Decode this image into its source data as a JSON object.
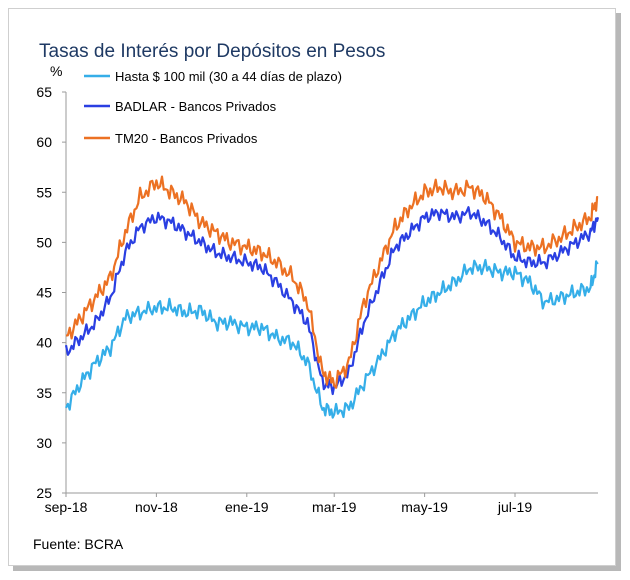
{
  "page": {
    "title": "Tasas de Interés por Depósitos en Pesos",
    "source": "Fuente: BCRA"
  },
  "chart_data": {
    "type": "line",
    "title": "Tasas de Interés por Depósitos en Pesos",
    "ylabel": "%",
    "xlabel": "",
    "ylim": [
      25,
      65
    ],
    "yticks": [
      25,
      30,
      35,
      40,
      45,
      50,
      55,
      60,
      65
    ],
    "xticks": [
      "sep-18",
      "nov-18",
      "ene-19",
      "mar-19",
      "may-19",
      "jul-19"
    ],
    "x_domain": [
      "2018-09-01",
      "2019-08-26"
    ],
    "grid": false,
    "legend_position": "top-left",
    "x": [
      "2018-09-01",
      "2018-09-11",
      "2018-09-21",
      "2018-10-01",
      "2018-10-11",
      "2018-10-21",
      "2018-11-01",
      "2018-11-11",
      "2018-11-21",
      "2018-12-01",
      "2018-12-11",
      "2018-12-21",
      "2019-01-01",
      "2019-01-11",
      "2019-01-21",
      "2019-02-01",
      "2019-02-11",
      "2019-02-21",
      "2019-03-01",
      "2019-03-11",
      "2019-03-21",
      "2019-04-01",
      "2019-04-11",
      "2019-04-21",
      "2019-05-01",
      "2019-05-11",
      "2019-05-21",
      "2019-06-01",
      "2019-06-11",
      "2019-06-21",
      "2019-07-01",
      "2019-07-11",
      "2019-07-21",
      "2019-08-01",
      "2019-08-11",
      "2019-08-21",
      "2019-08-26"
    ],
    "series": [
      {
        "name": "Hasta $ 100 mil (30 a 44 días de plazo)",
        "color": "#35aee8",
        "values": [
          33.5,
          36,
          38,
          39.5,
          42.5,
          43,
          43.5,
          43.5,
          43,
          43.2,
          42,
          42,
          41.5,
          41.5,
          40.5,
          40,
          38,
          33.5,
          33,
          33.5,
          36,
          38.5,
          41,
          42.5,
          44,
          45,
          46,
          47.5,
          47.5,
          47,
          47,
          46,
          44,
          44.5,
          45,
          45.5,
          48
        ]
      },
      {
        "name": "BADLAR - Bancos Privados",
        "color": "#2a3fe2",
        "values": [
          39,
          40.5,
          42,
          44.5,
          49,
          51.5,
          52.5,
          52,
          51,
          50,
          49,
          48.5,
          48,
          47.5,
          46,
          44,
          42,
          36,
          35.5,
          37,
          42,
          46,
          49.5,
          51,
          52.5,
          53,
          52.5,
          53,
          52,
          50.5,
          48.5,
          48,
          48,
          49,
          50,
          51,
          52.5
        ]
      },
      {
        "name": "TM20 - Bancos Privados",
        "color": "#ec7123",
        "values": [
          40.5,
          42.5,
          44.5,
          46.5,
          51,
          54.5,
          56,
          55,
          54,
          52,
          51,
          50,
          49.5,
          49,
          48,
          46.5,
          44,
          37,
          36,
          38,
          44,
          48,
          51.5,
          53.5,
          55,
          55.5,
          55,
          55.5,
          54.5,
          52.5,
          50,
          49.5,
          49.5,
          50.5,
          51.5,
          52.5,
          54.5
        ]
      }
    ]
  }
}
